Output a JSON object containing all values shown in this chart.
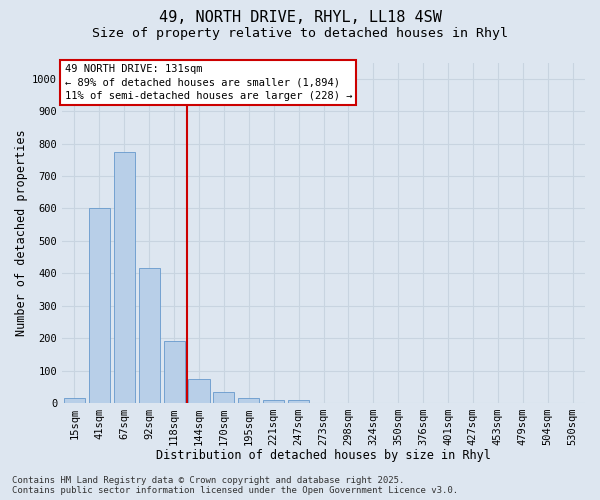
{
  "title": "49, NORTH DRIVE, RHYL, LL18 4SW",
  "subtitle": "Size of property relative to detached houses in Rhyl",
  "xlabel": "Distribution of detached houses by size in Rhyl",
  "ylabel": "Number of detached properties",
  "categories": [
    "15sqm",
    "41sqm",
    "67sqm",
    "92sqm",
    "118sqm",
    "144sqm",
    "170sqm",
    "195sqm",
    "221sqm",
    "247sqm",
    "273sqm",
    "298sqm",
    "324sqm",
    "350sqm",
    "376sqm",
    "401sqm",
    "427sqm",
    "453sqm",
    "479sqm",
    "504sqm",
    "530sqm"
  ],
  "values": [
    15,
    600,
    775,
    415,
    190,
    75,
    35,
    15,
    10,
    10,
    0,
    0,
    0,
    0,
    0,
    0,
    0,
    0,
    0,
    0,
    0
  ],
  "bar_color": "#b8cfe8",
  "bar_edgecolor": "#6699cc",
  "bg_color": "#dde6f0",
  "grid_color": "#c8d4e0",
  "vline_color": "#cc0000",
  "vline_x": 4.5,
  "annotation_line1": "49 NORTH DRIVE: 131sqm",
  "annotation_line2": "← 89% of detached houses are smaller (1,894)",
  "annotation_line3": "11% of semi-detached houses are larger (228) →",
  "ann_box_edgecolor": "#cc0000",
  "footer_text": "Contains HM Land Registry data © Crown copyright and database right 2025.\nContains public sector information licensed under the Open Government Licence v3.0.",
  "ylim": [
    0,
    1050
  ],
  "yticks": [
    0,
    100,
    200,
    300,
    400,
    500,
    600,
    700,
    800,
    900,
    1000
  ],
  "title_fontsize": 11,
  "subtitle_fontsize": 9.5,
  "axis_label_fontsize": 8.5,
  "tick_fontsize": 7.5,
  "ann_fontsize": 7.5,
  "footer_fontsize": 6.5
}
